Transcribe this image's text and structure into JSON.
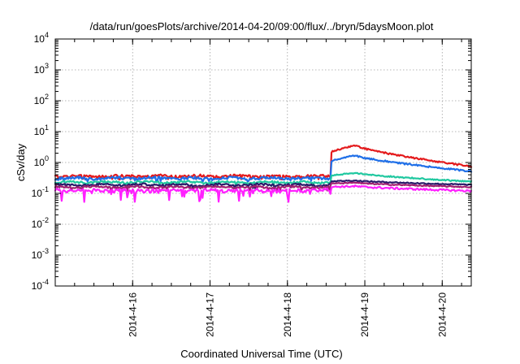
{
  "chart_data": {
    "type": "line",
    "title": "/data/run/goesPlots/archive/2014-04-20/09:00/flux/../bryn/5daysMoon.plot",
    "xlabel": "Coordinated Universal Time (UTC)",
    "ylabel": "cSv/day",
    "y_scale": "log",
    "ylim": [
      0.0001,
      10000
    ],
    "y_ticks": [
      {
        "value": 0.0001,
        "base": "10",
        "exp": "-4"
      },
      {
        "value": 0.001,
        "base": "10",
        "exp": "-3"
      },
      {
        "value": 0.01,
        "base": "10",
        "exp": "-2"
      },
      {
        "value": 0.1,
        "base": "10",
        "exp": "-1"
      },
      {
        "value": 1,
        "base": "10",
        "exp": "0"
      },
      {
        "value": 10,
        "base": "10",
        "exp": "1"
      },
      {
        "value": 100,
        "base": "10",
        "exp": "2"
      },
      {
        "value": 1000,
        "base": "10",
        "exp": "3"
      },
      {
        "value": 10000,
        "base": "10",
        "exp": "4"
      }
    ],
    "xlim": [
      "2014-04-15T00:00",
      "2014-04-20T09:00"
    ],
    "x_ticks": [
      {
        "value": "2014-04-16T00:00",
        "label": "2014-4-16"
      },
      {
        "value": "2014-04-17T00:00",
        "label": "2014-4-17"
      },
      {
        "value": "2014-04-18T00:00",
        "label": "2014-4-18"
      },
      {
        "value": "2014-04-19T00:00",
        "label": "2014-4-19"
      },
      {
        "value": "2014-04-20T00:00",
        "label": "2014-4-20"
      }
    ],
    "grid": true,
    "legend": "none",
    "series": [
      {
        "color": "#e41a1c",
        "base": 0.36,
        "event_peak": 3.6,
        "event_end": 0.75,
        "noise": 0.1
      },
      {
        "color": "#1f6fe8",
        "base": 0.31,
        "event_peak": 1.7,
        "event_end": 0.52,
        "noise": 0.1
      },
      {
        "color": "#20c8a0",
        "base": 0.23,
        "event_peak": 0.46,
        "event_end": 0.24,
        "noise": 0.08
      },
      {
        "color": "#2a1a6a",
        "base": 0.19,
        "event_peak": 0.26,
        "event_end": 0.19,
        "noise": 0.07
      },
      {
        "color": "#a02070",
        "base": 0.16,
        "event_peak": 0.22,
        "event_end": 0.16,
        "noise": 0.07
      },
      {
        "color": "#ff20ff",
        "base": 0.125,
        "event_peak": 0.17,
        "event_end": 0.12,
        "noise": 0.12,
        "dips": true
      }
    ],
    "event_onset": "2014-04-18T13:30",
    "event_peak_time": "2014-04-18T21:00"
  }
}
